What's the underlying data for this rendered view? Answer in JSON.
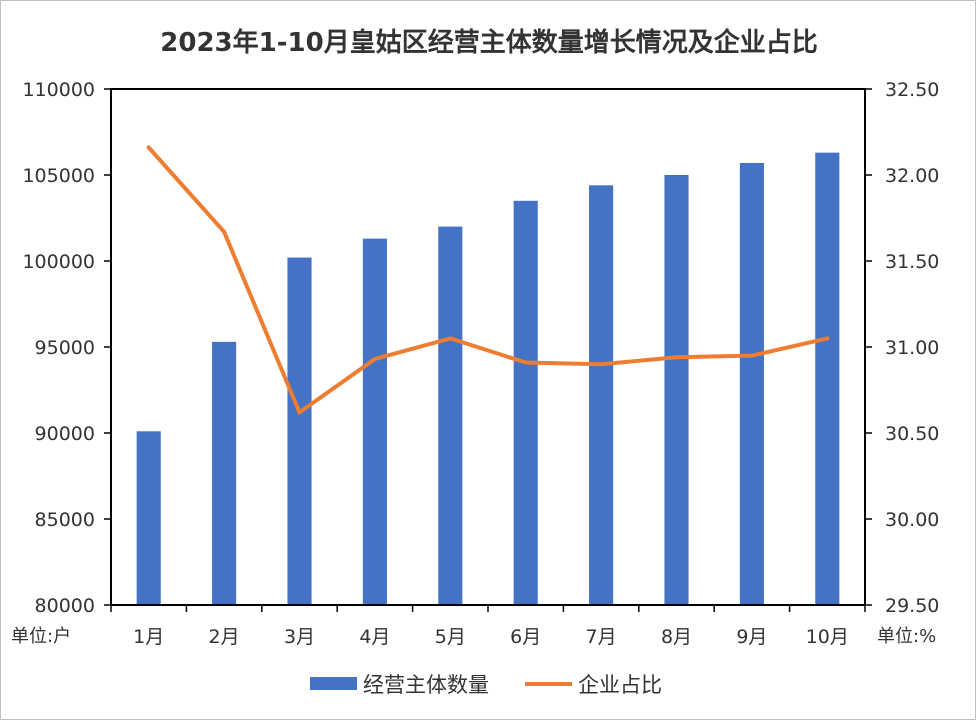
{
  "chart_data": {
    "type": "bar",
    "title": "2023年1-10月皇姑区经营主体数量增长情况及企业占比",
    "categories": [
      "1月",
      "2月",
      "3月",
      "4月",
      "5月",
      "6月",
      "7月",
      "8月",
      "9月",
      "10月"
    ],
    "series": [
      {
        "name": "经营主体数量",
        "type": "bar",
        "axis": "left",
        "color": "#4472C4",
        "values": [
          90100,
          95300,
          100200,
          101300,
          102000,
          103500,
          104400,
          105000,
          105700,
          106300
        ]
      },
      {
        "name": "企业占比",
        "type": "line",
        "axis": "right",
        "color": "#ED7D31",
        "values": [
          32.16,
          31.67,
          30.62,
          30.93,
          31.05,
          30.91,
          30.9,
          30.94,
          30.95,
          31.05
        ]
      }
    ],
    "y_left": {
      "ylim": [
        80000,
        110000
      ],
      "ticks": [
        "80000",
        "85000",
        "90000",
        "95000",
        "100000",
        "105000",
        "110000"
      ],
      "unit_label": "单位:户"
    },
    "y_right": {
      "ylim": [
        29.5,
        32.5
      ],
      "ticks": [
        "29.50",
        "30.00",
        "30.50",
        "31.00",
        "31.50",
        "32.00",
        "32.50"
      ],
      "unit_label": "单位:%"
    },
    "grid": false,
    "legend_position": "bottom"
  }
}
